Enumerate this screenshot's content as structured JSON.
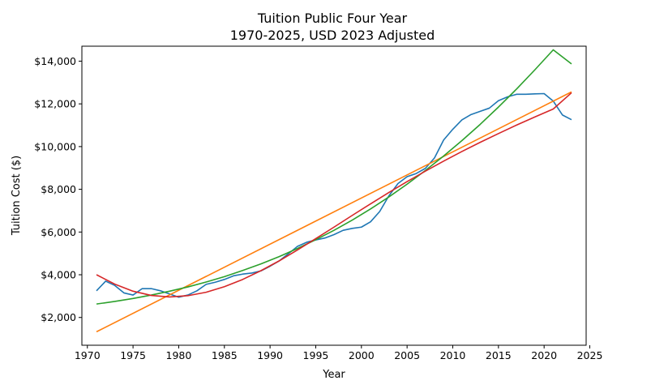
{
  "chart_data": {
    "type": "line",
    "title": "Tuition Public Four Year",
    "subtitle": "1970-2025, USD 2023 Adjusted",
    "xlabel": "Year",
    "ylabel": "Tuition Cost ($)",
    "xlim": [
      1969.4,
      2024.6
    ],
    "ylim": [
      700,
      14700
    ],
    "xticks": [
      1970,
      1975,
      1980,
      1985,
      1990,
      1995,
      2000,
      2005,
      2010,
      2015,
      2020,
      2025
    ],
    "yticks": [
      2000,
      4000,
      6000,
      8000,
      10000,
      12000,
      14000
    ],
    "ytick_labels": [
      "$2,000",
      "$4,000",
      "$6,000",
      "$8,000",
      "$10,000",
      "$12,000",
      "$14,000"
    ],
    "grid": false,
    "legend": "none",
    "series": [
      {
        "color": "#1f77b4",
        "x": [
          1971,
          1972,
          1973,
          1974,
          1975,
          1976,
          1977,
          1978,
          1979,
          1980,
          1981,
          1982,
          1983,
          1984,
          1985,
          1986,
          1987,
          1988,
          1989,
          1990,
          1991,
          1992,
          1993,
          1994,
          1995,
          1996,
          1997,
          1998,
          1999,
          2000,
          2001,
          2002,
          2003,
          2004,
          2005,
          2006,
          2007,
          2008,
          2009,
          2010,
          2011,
          2012,
          2013,
          2014,
          2015,
          2016,
          2017,
          2018,
          2019,
          2020,
          2021,
          2022,
          2023
        ],
        "y": [
          3250,
          3700,
          3500,
          3150,
          3050,
          3350,
          3350,
          3250,
          3100,
          2950,
          3050,
          3250,
          3550,
          3650,
          3780,
          3950,
          4030,
          4080,
          4180,
          4400,
          4650,
          4980,
          5330,
          5520,
          5630,
          5720,
          5880,
          6080,
          6170,
          6230,
          6480,
          6960,
          7690,
          8270,
          8590,
          8740,
          8980,
          9470,
          10310,
          10810,
          11250,
          11500,
          11650,
          11800,
          12150,
          12330,
          12450,
          12450,
          12470,
          12480,
          12130,
          11480,
          11260
        ]
      },
      {
        "color": "#ff7f0e",
        "x": [
          1971,
          2023
        ],
        "y": [
          1330,
          12560
        ]
      },
      {
        "color": "#2ca02c",
        "x": [
          1971,
          1973,
          1975,
          1977,
          1979,
          1981,
          1983,
          1985,
          1987,
          1989,
          1991,
          1993,
          1995,
          1997,
          1999,
          2001,
          2003,
          2005,
          2007,
          2009,
          2011,
          2013,
          2015,
          2017,
          2019,
          2021,
          2023
        ],
        "y": [
          2630,
          2750,
          2890,
          3050,
          3230,
          3430,
          3660,
          3910,
          4200,
          4510,
          4850,
          5230,
          5640,
          6080,
          6560,
          7080,
          7640,
          8240,
          8880,
          9560,
          10280,
          11040,
          11850,
          12700,
          13600,
          14530,
          13870
        ]
      },
      {
        "color": "#d62728",
        "x": [
          1971,
          1973,
          1975,
          1977,
          1979,
          1981,
          1983,
          1985,
          1987,
          1989,
          1991,
          1993,
          1995,
          1997,
          1999,
          2001,
          2003,
          2005,
          2007,
          2009,
          2011,
          2013,
          2015,
          2017,
          2019,
          2021,
          2023
        ],
        "y": [
          4000,
          3560,
          3230,
          3030,
          2960,
          3020,
          3180,
          3440,
          3780,
          4190,
          4650,
          5160,
          5690,
          6230,
          6780,
          7320,
          7850,
          8360,
          8850,
          9320,
          9770,
          10200,
          10610,
          11010,
          11390,
          11760,
          12520
        ]
      }
    ]
  }
}
